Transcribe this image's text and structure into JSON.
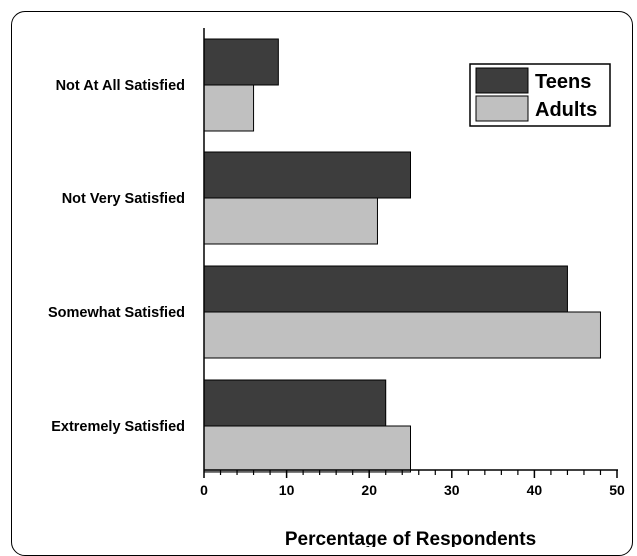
{
  "chart_data": {
    "type": "bar",
    "orientation": "horizontal",
    "categories": [
      "Not At All Satisfied",
      "Not Very Satisfied",
      "Somewhat Satisfied",
      "Extremely Satisfied"
    ],
    "series": [
      {
        "name": "Teens",
        "color": "#3d3d3d",
        "values": [
          9,
          25,
          44,
          22
        ]
      },
      {
        "name": "Adults",
        "color": "#c0c0c0",
        "values": [
          6,
          21,
          48,
          25
        ]
      }
    ],
    "xlabel": "Percentage of Respondents",
    "ylabel": "",
    "xlim": [
      0,
      50
    ],
    "xticks": [
      0,
      10,
      20,
      30,
      40,
      50
    ],
    "grid": false,
    "legend_position": "top-right"
  }
}
